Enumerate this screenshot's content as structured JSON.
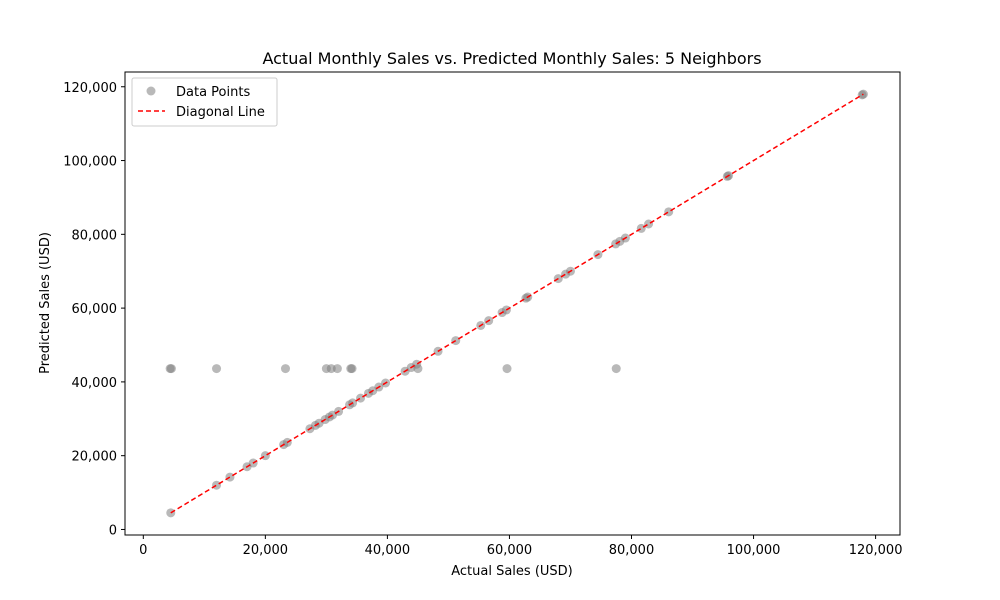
{
  "chart_data": {
    "type": "scatter",
    "title": "Actual Monthly Sales vs. Predicted Monthly Sales: 5 Neighbors",
    "xlabel": "Actual Sales (USD)",
    "ylabel": "Predicted Sales (USD)",
    "xlim": [
      -3000,
      124000
    ],
    "ylim": [
      -1500,
      124000
    ],
    "xticks": [
      0,
      20000,
      40000,
      60000,
      80000,
      100000,
      120000
    ],
    "xtick_labels": [
      "0",
      "20,000",
      "40,000",
      "60,000",
      "80,000",
      "100,000",
      "120,000"
    ],
    "yticks": [
      0,
      20000,
      40000,
      60000,
      80000,
      100000,
      120000
    ],
    "ytick_labels": [
      "0",
      "20,000",
      "40,000",
      "60,000",
      "80,000",
      "100,000",
      "120,000"
    ],
    "grid": false,
    "legend": {
      "placement": "top-left",
      "entries": [
        "Data Points",
        "Diagonal Line"
      ]
    },
    "colors": {
      "points": "#808080",
      "diagonal": "#ff0000"
    },
    "series": [
      {
        "name": "Data Points",
        "kind": "scatter",
        "x": [
          4500,
          12000,
          14200,
          17000,
          18000,
          20000,
          23000,
          23600,
          27300,
          28200,
          28800,
          29800,
          30500,
          31000,
          32000,
          33800,
          34300,
          35600,
          36900,
          37600,
          38600,
          39700,
          42900,
          43900,
          44800,
          48300,
          51200,
          55300,
          56600,
          58800,
          59500,
          62700,
          63000,
          68000,
          69200,
          70000,
          74500,
          77400,
          78100,
          79000,
          81600,
          82800,
          86100,
          95700,
          95900,
          117800,
          118000,
          4400,
          4600,
          12000,
          23300,
          30000,
          30800,
          31800,
          34000,
          34200,
          45000,
          59600,
          77500
        ],
        "y": [
          4500,
          12000,
          14200,
          17000,
          18000,
          20000,
          23000,
          23600,
          27300,
          28200,
          28800,
          29800,
          30500,
          31000,
          32000,
          33800,
          34300,
          35600,
          36900,
          37600,
          38600,
          39700,
          42900,
          43900,
          44800,
          48300,
          51200,
          55300,
          56600,
          58800,
          59500,
          62700,
          63000,
          68000,
          69200,
          70000,
          74500,
          77400,
          78100,
          79000,
          81600,
          82800,
          86100,
          95700,
          95900,
          117800,
          118000,
          43600,
          43600,
          43600,
          43600,
          43600,
          43600,
          43600,
          43600,
          43600,
          43600,
          43600,
          43600
        ]
      },
      {
        "name": "Diagonal Line",
        "kind": "line",
        "x": [
          4500,
          118000
        ],
        "y": [
          4500,
          118000
        ]
      }
    ]
  }
}
